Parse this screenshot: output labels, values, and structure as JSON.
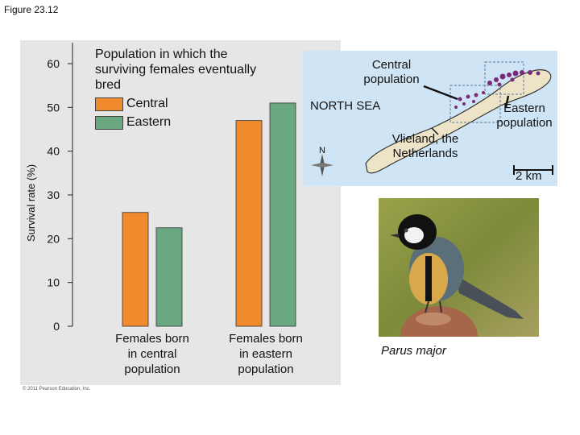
{
  "figure_label": "Figure 23.12",
  "legend": {
    "title": "Population in which the surviving females eventually bred",
    "entries": [
      {
        "label": "Central",
        "color": "#f08a2c"
      },
      {
        "label": "Eastern",
        "color": "#6aa882"
      }
    ]
  },
  "chart_data": {
    "type": "bar",
    "ylabel": "Survival rate (%)",
    "ylim": [
      0,
      60
    ],
    "yticks": [
      0,
      10,
      20,
      30,
      40,
      50,
      60
    ],
    "categories": [
      "Females born in central population",
      "Females born in eastern population"
    ],
    "series": [
      {
        "name": "Central",
        "color": "#f08a2c",
        "values": [
          26,
          47
        ]
      },
      {
        "name": "Eastern",
        "color": "#6aa882",
        "values": [
          22.5,
          51
        ]
      }
    ],
    "grid": false,
    "legend_position": "top-left"
  },
  "map": {
    "labels": {
      "central": "Central population",
      "north_sea": "NORTH SEA",
      "eastern": "Eastern population",
      "island": "Vlieland, the Netherlands",
      "north": "N",
      "scale": "2 km"
    },
    "colors": {
      "sea": "#cfe5f5",
      "land": "#ede3c7",
      "birds": "#7b2a7a"
    }
  },
  "photo": {
    "caption": "Parus major"
  },
  "copyright": "© 2011 Pearson Education, Inc."
}
